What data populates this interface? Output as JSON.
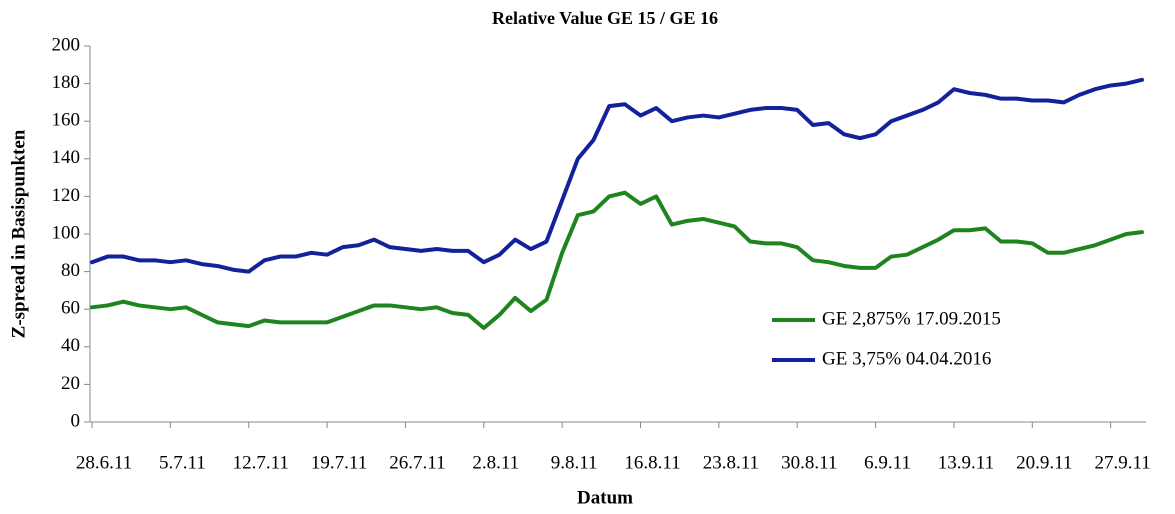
{
  "chart_data": {
    "type": "line",
    "title": "Relative Value GE 15 / GE 16",
    "x_label": "Datum",
    "y_label": "Z-spread in Basispunkten",
    "categories": [
      "28.6.11",
      null,
      null,
      null,
      null,
      "5.7.11",
      null,
      null,
      null,
      null,
      "12.7.11",
      null,
      null,
      null,
      null,
      "19.7.11",
      null,
      null,
      null,
      null,
      "26.7.11",
      null,
      null,
      null,
      null,
      "2.8.11",
      null,
      null,
      null,
      null,
      "9.8.11",
      null,
      null,
      null,
      null,
      "16.8.11",
      null,
      null,
      null,
      null,
      "23.8.11",
      null,
      null,
      null,
      null,
      "30.8.11",
      null,
      null,
      null,
      null,
      "6.9.11",
      null,
      null,
      null,
      null,
      "13.9.11",
      null,
      null,
      null,
      null,
      "20.9.11",
      null,
      null,
      null,
      null,
      "27.9.11",
      null,
      null
    ],
    "series": [
      {
        "name": "GE 2,875% 17.09.2015",
        "color": "#1e841e",
        "values": [
          61,
          62,
          64,
          62,
          61,
          60,
          61,
          57,
          53,
          52,
          51,
          54,
          53,
          53,
          53,
          53,
          56,
          59,
          62,
          62,
          61,
          60,
          61,
          58,
          57,
          50,
          57,
          66,
          59,
          65,
          90,
          110,
          112,
          120,
          122,
          116,
          120,
          105,
          107,
          108,
          106,
          104,
          96,
          95,
          95,
          93,
          86,
          85,
          83,
          82,
          82,
          88,
          89,
          93,
          97,
          102,
          102,
          103,
          96,
          96,
          95,
          90,
          90,
          92,
          94,
          97,
          100,
          101
        ]
      },
      {
        "name": "GE 3,75% 04.04.2016",
        "color": "#13219a",
        "values": [
          85,
          88,
          88,
          86,
          86,
          85,
          86,
          84,
          83,
          81,
          80,
          86,
          88,
          88,
          90,
          89,
          93,
          94,
          97,
          93,
          92,
          91,
          92,
          91,
          91,
          85,
          89,
          97,
          92,
          96,
          118,
          140,
          150,
          168,
          169,
          163,
          167,
          160,
          162,
          163,
          162,
          164,
          166,
          167,
          167,
          166,
          158,
          159,
          153,
          151,
          153,
          160,
          163,
          166,
          170,
          177,
          175,
          174,
          172,
          172,
          171,
          171,
          170,
          174,
          177,
          179,
          180,
          182
        ]
      }
    ],
    "ylim": [
      0,
      200
    ],
    "yticks": [
      0,
      20,
      40,
      60,
      80,
      100,
      120,
      140,
      160,
      180,
      200
    ],
    "grid": false,
    "legend": "lower right"
  }
}
